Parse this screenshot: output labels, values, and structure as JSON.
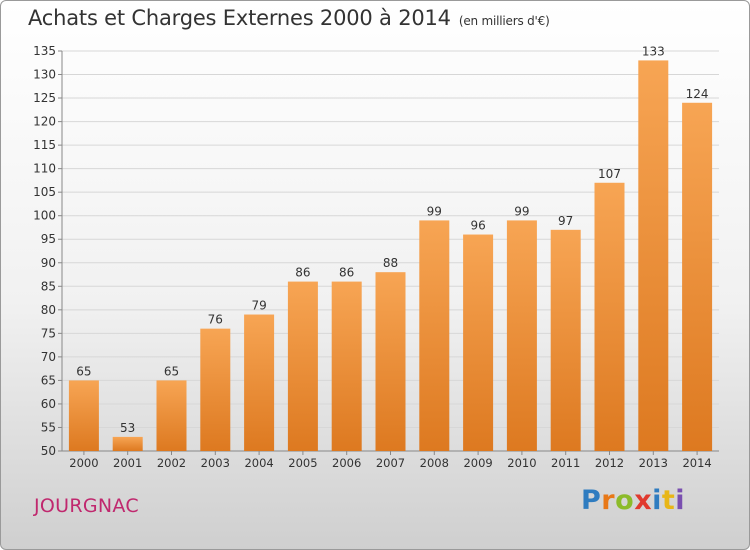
{
  "title": "Achats et Charges Externes 2000 à 2014",
  "subtitle": "(en milliers d'€)",
  "commune": "JOURGNAC",
  "logo": {
    "letters": [
      "P",
      "r",
      "o",
      "x",
      "i",
      "t",
      "i"
    ],
    "colors": [
      "#2f7cc0",
      "#e87817",
      "#8cbb2a",
      "#e03a2f",
      "#2f7cc0",
      "#e8b617",
      "#7a4fb0"
    ]
  },
  "colors": {
    "bar_light": "#f7a554",
    "bar_dark": "#dd7920",
    "grid": "#d7d7d7"
  },
  "chart_data": {
    "type": "bar",
    "categories": [
      "2000",
      "2001",
      "2002",
      "2003",
      "2004",
      "2005",
      "2006",
      "2007",
      "2008",
      "2009",
      "2010",
      "2011",
      "2012",
      "2013",
      "2014"
    ],
    "values": [
      65,
      53,
      65,
      76,
      79,
      86,
      86,
      88,
      99,
      96,
      99,
      97,
      107,
      133,
      124
    ],
    "ylim": [
      50,
      135
    ],
    "yticks": [
      50,
      55,
      60,
      65,
      70,
      75,
      80,
      85,
      90,
      95,
      100,
      105,
      110,
      115,
      120,
      125,
      130,
      135
    ],
    "grid": true,
    "show_data_labels": true
  }
}
